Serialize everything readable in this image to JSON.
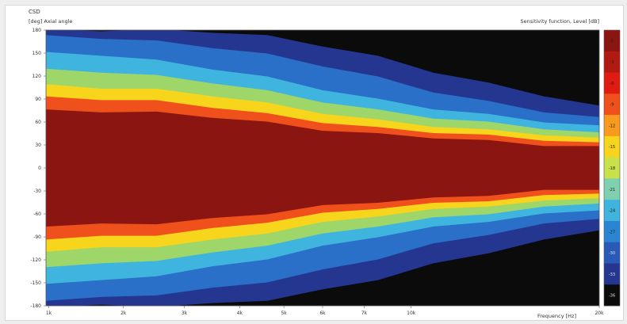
{
  "chart_data": {
    "type": "heatmap",
    "title": "CSD",
    "ylabel": "[deg] Axial angle",
    "subtitle_right": "Sensitivity function, Level [dB]",
    "xlabel": "Frequency [Hz]",
    "x_ticks": [
      "1k",
      "2k",
      "3k",
      "4k",
      "5k",
      "6k",
      "7k",
      "10k",
      "20k"
    ],
    "y_ticks": [
      "180",
      "150",
      "120",
      "90",
      "60",
      "30",
      "0",
      "-30",
      "-60",
      "-90",
      "-120",
      "-150",
      "-180"
    ],
    "ylim": [
      -180,
      180
    ],
    "grid": false,
    "legend": "right",
    "colorbar": {
      "labels": [
        "0",
        "-3",
        "-6",
        "-9",
        "-12",
        "-15",
        "-18",
        "-21",
        "-24",
        "-27",
        "-30",
        "-33",
        "-36"
      ],
      "colors": [
        "#8b1510",
        "#b01a10",
        "#e01b12",
        "#f0501c",
        "#f79a1e",
        "#f7d51c",
        "#c8e04a",
        "#7fd0b0",
        "#3fb4de",
        "#2a86d2",
        "#2a5ab8",
        "#24368f",
        "#0b0b0b"
      ]
    },
    "band_profile": {
      "x_fraction": [
        0.0,
        0.1,
        0.2,
        0.3,
        0.4,
        0.5,
        0.6,
        0.7,
        0.8,
        0.9,
        1.0
      ],
      "red_halfwidth_deg": [
        75,
        74,
        72,
        67,
        59,
        50,
        44,
        40,
        35,
        30,
        27
      ],
      "orange_halfwidth_deg": [
        92,
        90,
        87,
        80,
        70,
        60,
        52,
        47,
        42,
        37,
        32
      ],
      "yellow_halfwidth_deg": [
        108,
        105,
        102,
        95,
        84,
        72,
        62,
        55,
        49,
        44,
        38
      ],
      "green_halfwidth_deg": [
        128,
        126,
        120,
        112,
        100,
        87,
        75,
        66,
        59,
        52,
        45
      ],
      "cyan_halfwidth_deg": [
        150,
        148,
        140,
        130,
        118,
        103,
        89,
        78,
        69,
        61,
        54
      ],
      "blue_halfwidth_deg": [
        172,
        170,
        165,
        158,
        148,
        134,
        118,
        100,
        86,
        74,
        65
      ],
      "navy_halfwidth_deg": [
        180,
        180,
        180,
        178,
        172,
        160,
        145,
        126,
        110,
        95,
        80
      ]
    }
  }
}
